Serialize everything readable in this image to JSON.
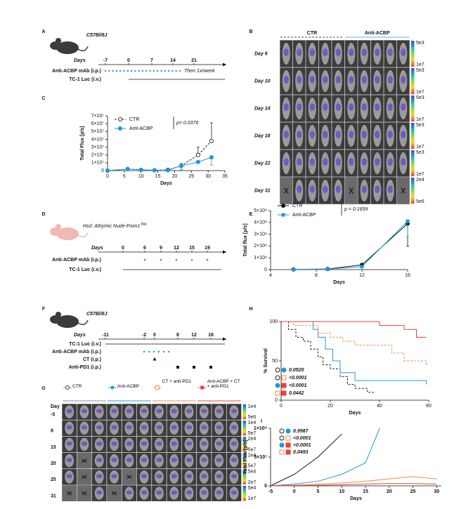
{
  "panel_labels": [
    "A",
    "B",
    "C",
    "D",
    "E",
    "F",
    "G",
    "H",
    "I"
  ],
  "panel_A": {
    "strain": "C57Bl/6J",
    "days_label": "Days",
    "days": [
      "-7",
      "0",
      "7",
      "14",
      "21"
    ],
    "treatment": "Anti-ACBP mAb (i.p.)",
    "treatment_note": "Then 1x/week",
    "tumor": "TC-1 Luc (i.v.)"
  },
  "panel_B": {
    "groups": [
      "CTR",
      "Anti-ACBP"
    ],
    "rows": [
      {
        "day": "Day 6",
        "scale_max": "5e3",
        "scale_min": "1e7"
      },
      {
        "day": "Day 10",
        "scale_max": "5e3",
        "scale_min": "1e7"
      },
      {
        "day": "Day 14",
        "scale_max": "5e3",
        "scale_min": "1e7"
      },
      {
        "day": "Day 18",
        "scale_max": "5e3",
        "scale_min": "1e7"
      },
      {
        "day": "Day 22",
        "scale_max": "5e3",
        "scale_min": "1e7"
      },
      {
        "day": "Day 31",
        "scale_max": "2e4",
        "scale_min": "5e6"
      }
    ]
  },
  "panel_D": {
    "strain": "Hsd: Athymic Nude-Foxn1",
    "strain_sup": "nu",
    "days_label": "Days",
    "days": [
      "0",
      "6",
      "9",
      "12",
      "15",
      "19"
    ],
    "treatment": "Anti-ACBP mAb (i.p.)",
    "tumor": "TC-1 Luc (i.v.)"
  },
  "panel_F": {
    "strain": "C57Bl/6J",
    "days_label": "Days",
    "days": [
      "-11",
      "-2",
      "0",
      "8",
      "12",
      "16"
    ],
    "rows": [
      "TC-1 Luc (i.v.)",
      "Anti-ACBP mAb (i.p.)",
      "CT (i.p.)",
      "Anti-PD1 (i.p.)"
    ]
  },
  "panel_G": {
    "groups": [
      "CTR",
      "Anti-ACBP",
      "CT + anti-PD1",
      "Anti-ACBP + CT + anti-PD1"
    ],
    "day_label": "Day",
    "rows": [
      {
        "day": "-5",
        "scale_max": "1e4",
        "scale_min": "5e6"
      },
      {
        "day": "8",
        "scale_max": "1e4",
        "scale_min": "5e7"
      },
      {
        "day": "15",
        "scale_max": "2e4",
        "scale_min": "5e7"
      },
      {
        "day": "20",
        "scale_max": "2e4",
        "scale_min": "5e7"
      },
      {
        "day": "25",
        "scale_max": "5e4",
        "scale_min": "2e7"
      },
      {
        "day": "31",
        "scale_max": "5e4",
        "scale_min": "1e7"
      }
    ]
  },
  "chart_data": [
    {
      "type": "line",
      "xlabel": "Days",
      "ylabel": "Total Flux [p/s]",
      "annotation": "p= 0.0376",
      "legend": "top-left",
      "xlim": [
        0,
        35
      ],
      "xticks": [
        0,
        5,
        10,
        15,
        20,
        25,
        30,
        35
      ],
      "ylim": [
        0,
        70000000
      ],
      "yticks": [
        0,
        {
          "value": 10000000,
          "label": "1×10⁷"
        },
        {
          "value": 20000000,
          "label": "2×10⁷"
        },
        {
          "value": 30000000,
          "label": "3×10⁷"
        },
        {
          "value": 40000000,
          "label": "4×10⁷"
        },
        {
          "value": 50000000,
          "label": "5×10⁷"
        },
        {
          "value": 60000000,
          "label": "6×10⁷"
        },
        {
          "value": 70000000,
          "label": "7×10⁷"
        }
      ],
      "series": [
        {
          "name": "CTR",
          "color": "#222222",
          "dashed": true,
          "marker": "open-circle",
          "error_direction": "up",
          "x": [
            0,
            6,
            10,
            14,
            18,
            22,
            27,
            31
          ],
          "values": [
            0,
            2000000,
            1000000,
            500000,
            1000000,
            6000000,
            20000000,
            38000000
          ],
          "errors": [
            0,
            500000,
            500000,
            300000,
            500000,
            3000000,
            10000000,
            23000000
          ]
        },
        {
          "name": "Anti-ACBP",
          "color": "#1e9ad6",
          "dashed": false,
          "marker": "circle",
          "error_direction": "down",
          "x": [
            0,
            6,
            10,
            14,
            18,
            22,
            27,
            31
          ],
          "values": [
            0,
            2000000,
            1000000,
            500000,
            500000,
            6000000,
            11000000,
            17000000
          ],
          "errors": [
            0,
            500000,
            300000,
            300000,
            500000,
            5000000,
            1000000,
            10000000
          ]
        }
      ]
    },
    {
      "type": "line",
      "xlabel": "Days",
      "ylabel": "Total flux [p/s]",
      "annotation": "p = 0.1659",
      "legend": "top-left",
      "xlim": [
        4,
        16
      ],
      "xticks": [
        4,
        8,
        12,
        16
      ],
      "ylim": [
        0,
        5000000000
      ],
      "yticks": [
        0,
        {
          "value": 1000000000,
          "label": "1×10⁹"
        },
        {
          "value": 2000000000,
          "label": "2×10⁹"
        },
        {
          "value": 3000000000,
          "label": "3×10⁹"
        },
        {
          "value": 4000000000,
          "label": "4×10⁹"
        },
        {
          "value": 5000000000,
          "label": "5×10⁹"
        }
      ],
      "series": [
        {
          "name": "CTR",
          "color": "#111111",
          "dashed": false,
          "marker": "circle",
          "error_direction": "down",
          "x": [
            6,
            9,
            12,
            16
          ],
          "values": [
            20000000,
            50000000,
            400000000,
            3900000000
          ],
          "errors": [
            0,
            0,
            50000000,
            1900000000
          ]
        },
        {
          "name": "Anti-ACBP",
          "color": "#1e9ad6",
          "dashed": false,
          "marker": "square",
          "error_direction": "down",
          "x": [
            6,
            9,
            12,
            16
          ],
          "values": [
            20000000,
            40000000,
            250000000,
            4100000000
          ],
          "errors": [
            0,
            0,
            50000000,
            1300000000
          ]
        }
      ]
    },
    {
      "type": "step",
      "xlabel": "Days",
      "ylabel": "% Survival",
      "p_values": [
        "0.0520",
        "<0.0001",
        "<0.0001",
        "0.0442"
      ],
      "xlim": [
        0,
        60
      ],
      "xticks": [
        0,
        20,
        40,
        60
      ],
      "ylim": [
        0,
        100
      ],
      "yticks": [
        0,
        50,
        100
      ],
      "series": [
        {
          "color": "#222222",
          "dashed": true,
          "x": [
            0,
            3,
            6,
            9,
            12,
            15,
            17,
            20,
            24,
            27,
            30,
            35,
            38
          ],
          "values": [
            100,
            90,
            80,
            75,
            65,
            55,
            45,
            40,
            30,
            20,
            15,
            10,
            10
          ]
        },
        {
          "color": "#1e9ad6",
          "dashed": false,
          "x": [
            0,
            10,
            13,
            15,
            18,
            21,
            24,
            30,
            40,
            59
          ],
          "values": [
            100,
            100,
            90,
            80,
            65,
            50,
            35,
            25,
            25,
            20
          ]
        },
        {
          "color": "#f08a4b",
          "dashed": true,
          "x": [
            0,
            5,
            15,
            20,
            25,
            30,
            40,
            45,
            50,
            59
          ],
          "values": [
            100,
            95,
            85,
            80,
            75,
            70,
            70,
            60,
            50,
            45
          ]
        },
        {
          "color": "#e8413c",
          "dashed": false,
          "x": [
            0,
            35,
            40,
            50,
            55,
            59
          ],
          "values": [
            100,
            100,
            95,
            90,
            80,
            80
          ]
        }
      ]
    },
    {
      "type": "line",
      "xlabel": "Days",
      "ylabel": "Total Flux [p/s]",
      "p_values": [
        "0.9987",
        "<0.0001",
        "<0.0001",
        "0.0493"
      ],
      "xlim": [
        -5,
        31
      ],
      "xticks": [
        -5,
        0,
        5,
        10,
        15,
        20,
        25,
        30
      ],
      "ylim": [
        0,
        100000000
      ],
      "yticks": [
        0,
        {
          "value": 50000000,
          "label": "5×10⁷"
        },
        {
          "value": 100000000,
          "label": "1×10⁸"
        }
      ],
      "series": [
        {
          "color": "#111111",
          "dashed": false,
          "marker": "none",
          "x": [
            -5,
            0,
            5,
            10
          ],
          "values": [
            0,
            20000000,
            50000000,
            90000000
          ]
        },
        {
          "color": "#1e9ad6",
          "dashed": false,
          "marker": "none",
          "x": [
            -5,
            0,
            5,
            10,
            15,
            18
          ],
          "values": [
            0,
            3000000,
            8000000,
            20000000,
            40000000,
            100000000
          ]
        },
        {
          "color": "#f08a4b",
          "dashed": false,
          "marker": "none",
          "x": [
            -5,
            0,
            5,
            10,
            15,
            20,
            25,
            30
          ],
          "values": [
            0,
            1000000,
            3000000,
            5000000,
            8000000,
            12000000,
            16000000,
            12000000
          ]
        },
        {
          "color": "#e8413c",
          "dashed": false,
          "marker": "none",
          "x": [
            -5,
            0,
            5,
            10,
            15,
            20,
            25,
            30
          ],
          "values": [
            0,
            500000,
            1000000,
            2000000,
            3000000,
            4000000,
            4000000,
            3000000
          ]
        }
      ]
    }
  ]
}
